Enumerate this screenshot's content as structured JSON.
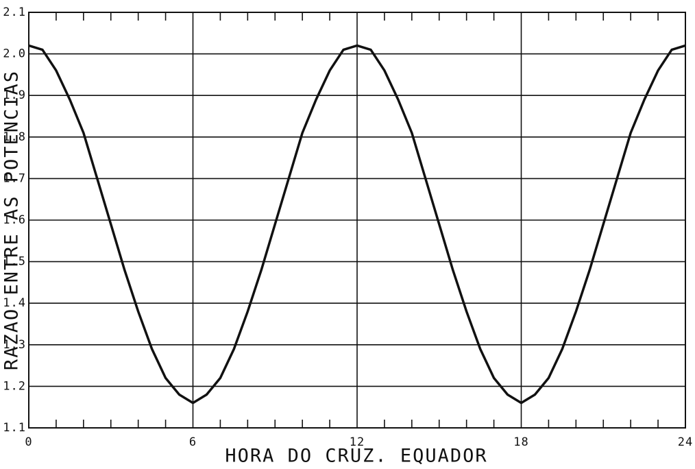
{
  "chart_data": {
    "type": "line",
    "x_label": "HORA DO CRUZ. EQUADOR",
    "y_label": "RAZAO ENTRE AS POTENCIAS",
    "xlim": [
      0,
      24
    ],
    "ylim": [
      1.1,
      2.1
    ],
    "xticks": [
      0,
      6,
      12,
      18,
      24
    ],
    "xminorticks": [
      1,
      2,
      3,
      4,
      5,
      7,
      8,
      9,
      10,
      11,
      13,
      14,
      15,
      16,
      17,
      19,
      20,
      21,
      22,
      23
    ],
    "yticks": [
      1.1,
      1.2,
      1.3,
      1.4,
      1.5,
      1.6,
      1.7,
      1.8,
      1.9,
      {
        "value": 2,
        "label": "2.0"
      },
      2.1
    ],
    "grid": true,
    "x": [
      0,
      0.5,
      1,
      1.5,
      2,
      2.5,
      3,
      3.5,
      4,
      4.5,
      5,
      5.5,
      6,
      6.5,
      7,
      7.5,
      8,
      8.5,
      9,
      9.5,
      10,
      10.5,
      11,
      11.5,
      12,
      12.5,
      13,
      13.5,
      14,
      14.5,
      15,
      15.5,
      16,
      16.5,
      17,
      17.5,
      18,
      18.5,
      19,
      19.5,
      20,
      20.5,
      21,
      21.5,
      22,
      22.5,
      23,
      23.5,
      24
    ],
    "series": [
      {
        "color": "#111111",
        "values": [
          2.02,
          2.01,
          1.96,
          1.89,
          1.81,
          1.7,
          1.59,
          1.48,
          1.38,
          1.29,
          1.22,
          1.18,
          1.16,
          1.18,
          1.22,
          1.29,
          1.38,
          1.48,
          1.59,
          1.7,
          1.81,
          1.89,
          1.96,
          2.01,
          2.02,
          2.01,
          1.96,
          1.89,
          1.81,
          1.7,
          1.59,
          1.48,
          1.38,
          1.29,
          1.22,
          1.18,
          1.16,
          1.18,
          1.22,
          1.29,
          1.38,
          1.48,
          1.59,
          1.7,
          1.81,
          1.89,
          1.96,
          2.01,
          2.02
        ]
      }
    ]
  }
}
